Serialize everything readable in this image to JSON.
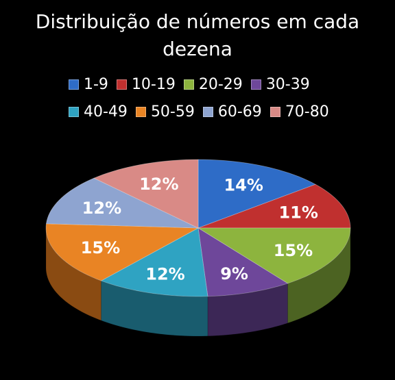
{
  "chart_data": {
    "type": "pie",
    "title_lines": [
      "Distribuição de números em cada",
      "dezena"
    ],
    "legend_position": "top",
    "slices": [
      {
        "label": "1-9",
        "value": 14,
        "display": "14%",
        "color": "#2E6CC7",
        "side_color": "#1A3F7A"
      },
      {
        "label": "10-19",
        "value": 11,
        "display": "11%",
        "color": "#C0302F",
        "side_color": "#701B1B"
      },
      {
        "label": "20-29",
        "value": 15,
        "display": "15%",
        "color": "#8DB43E",
        "side_color": "#4C6322"
      },
      {
        "label": "30-39",
        "value": 9,
        "display": "9%",
        "color": "#6E479A",
        "side_color": "#3C2756"
      },
      {
        "label": "40-49",
        "value": 12,
        "display": "12%",
        "color": "#2FA3C2",
        "side_color": "#195C6E"
      },
      {
        "label": "50-59",
        "value": 15,
        "display": "15%",
        "color": "#E98424",
        "side_color": "#8A4B12"
      },
      {
        "label": "60-69",
        "value": 12,
        "display": "12%",
        "color": "#8EA4D0",
        "side_color": "#4E5D7E"
      },
      {
        "label": "70-80",
        "value": 12,
        "display": "12%",
        "color": "#D98A86",
        "side_color": "#7E4B48"
      }
    ]
  }
}
